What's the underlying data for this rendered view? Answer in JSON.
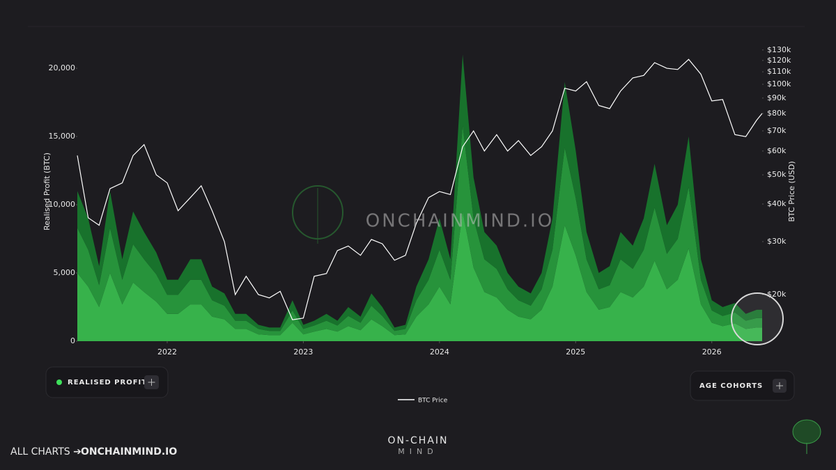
{
  "chart_data": {
    "type": "area",
    "stacked": true,
    "y_label": "Realised Profit (BTC)",
    "y2_label": "BTC Price (USD)",
    "x": [
      2021.34,
      2021.42,
      2021.5,
      2021.58,
      2021.67,
      2021.75,
      2021.83,
      2021.92,
      2022.0,
      2022.08,
      2022.17,
      2022.25,
      2022.33,
      2022.42,
      2022.5,
      2022.58,
      2022.67,
      2022.75,
      2022.83,
      2022.92,
      2023.0,
      2023.08,
      2023.17,
      2023.25,
      2023.33,
      2023.42,
      2023.5,
      2023.58,
      2023.67,
      2023.75,
      2023.83,
      2023.92,
      2024.0,
      2024.08,
      2024.17,
      2024.25,
      2024.33,
      2024.42,
      2024.5,
      2024.58,
      2024.67,
      2024.75,
      2024.83,
      2024.92,
      2025.0,
      2025.08,
      2025.17,
      2025.25,
      2025.33,
      2025.42,
      2025.5,
      2025.58,
      2025.67,
      2025.75,
      2025.83,
      2025.92,
      2026.0,
      2026.08,
      2026.17,
      2026.25,
      2026.33,
      2026.37
    ],
    "series": [
      {
        "color": "#37b24b",
        "values": [
          5000,
          4000,
          2500,
          5000,
          2700,
          4300,
          3600,
          2900,
          2000,
          2000,
          2700,
          2700,
          1800,
          1600,
          900,
          900,
          500,
          450,
          450,
          1350,
          500,
          700,
          900,
          700,
          1100,
          800,
          1600,
          1100,
          450,
          500,
          1800,
          2700,
          4000,
          2700,
          9500,
          5400,
          3600,
          3200,
          2300,
          1800,
          1600,
          2300,
          4000,
          8500,
          6300,
          3600,
          2300,
          2500,
          3600,
          3200,
          4000,
          5900,
          3800,
          4500,
          6800,
          2700,
          1350,
          1100,
          1300,
          900,
          1000,
          1000
        ]
      },
      {
        "color": "#27933b",
        "values": [
          3300,
          2700,
          1600,
          3300,
          1800,
          2800,
          2400,
          2000,
          1400,
          1400,
          1800,
          1800,
          1200,
          1000,
          600,
          600,
          400,
          300,
          300,
          900,
          400,
          450,
          600,
          450,
          750,
          550,
          1000,
          750,
          300,
          400,
          1200,
          1800,
          2700,
          1800,
          6300,
          3600,
          2400,
          2100,
          1500,
          1200,
          1000,
          1500,
          2700,
          5700,
          4200,
          2400,
          1500,
          1600,
          2400,
          2100,
          2700,
          3900,
          2600,
          3000,
          4500,
          1800,
          900,
          750,
          800,
          600,
          700,
          700
        ]
      },
      {
        "color": "#18722c",
        "values": [
          2700,
          2300,
          1400,
          2700,
          1500,
          2400,
          2000,
          1600,
          1100,
          1100,
          1500,
          1500,
          1000,
          900,
          500,
          500,
          300,
          250,
          250,
          750,
          300,
          350,
          500,
          350,
          650,
          450,
          900,
          650,
          250,
          300,
          1000,
          1500,
          2300,
          1500,
          5200,
          3000,
          2000,
          1700,
          1200,
          1000,
          900,
          1200,
          2300,
          4800,
          3500,
          2000,
          1200,
          1400,
          2000,
          1700,
          2300,
          3200,
          2100,
          2500,
          3700,
          1500,
          750,
          650,
          700,
          500,
          600,
          600
        ]
      },
      {
        "name": "BTC Price",
        "type": "line",
        "axis": "y2",
        "color": "#ffffff",
        "values": [
          58000,
          36000,
          34000,
          45000,
          47000,
          58000,
          63000,
          50000,
          47000,
          38000,
          42000,
          46000,
          38000,
          30000,
          20000,
          23000,
          20000,
          19500,
          20500,
          16500,
          16700,
          23000,
          23500,
          28000,
          29000,
          27000,
          30500,
          29500,
          26000,
          27000,
          34500,
          42000,
          44000,
          43000,
          62000,
          70000,
          60000,
          68000,
          60000,
          65000,
          58000,
          62000,
          70000,
          97000,
          95000,
          102000,
          85000,
          83000,
          95000,
          105000,
          107000,
          118000,
          113000,
          112000,
          121000,
          108000,
          88000,
          89000,
          68000,
          67000,
          76000,
          80000
        ]
      }
    ],
    "xlim": [
      2021.34,
      2026.37
    ],
    "xticks": [
      2022,
      2023,
      2024,
      2025,
      2026
    ],
    "ylim": [
      0,
      22960
    ],
    "yticks": [
      0,
      {
        "value": 5000,
        "label": "5,000"
      },
      {
        "value": 10000,
        "label": "10,000"
      },
      {
        "value": 15000,
        "label": "15,000"
      },
      {
        "value": 20000,
        "label": "20,000"
      }
    ],
    "y2lim": [
      14000,
      154000
    ],
    "y2log": true,
    "y2ticks": [
      {
        "value": 20000,
        "label": "$20k"
      },
      {
        "value": 30000,
        "label": "$30k"
      },
      {
        "value": 40000,
        "label": "$40k"
      },
      {
        "value": 50000,
        "label": "$50k"
      },
      {
        "value": 60000,
        "label": "$60k"
      },
      {
        "value": 70000,
        "label": "$70k"
      },
      {
        "value": 80000,
        "label": "$80k"
      },
      {
        "value": 90000,
        "label": "$90k"
      },
      {
        "value": 100000,
        "label": "$100k"
      },
      {
        "value": 110000,
        "label": "$110k"
      },
      {
        "value": 120000,
        "label": "$120k"
      },
      {
        "value": 130000,
        "label": "$130k"
      }
    ],
    "grid": false
  },
  "ui": {
    "watermark": "ONCHAINMIND.IO",
    "realised_profit_button": "REALISED PROFIT",
    "age_cohorts_button": "AGE COHORTS",
    "footer_prefix": "ALL CHARTS ➔",
    "footer_link": "ONCHAINMIND.IO",
    "logo_top": "ON-CHAIN",
    "logo_bottom": "MIND"
  }
}
